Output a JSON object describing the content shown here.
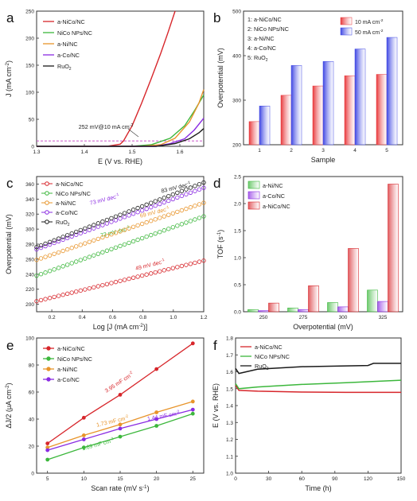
{
  "chart_data": [
    {
      "panel": "a",
      "type": "line",
      "xlabel": "E (V vs. RHE)",
      "ylabel": "J (mA cm-2)",
      "xlim": [
        1.3,
        1.65
      ],
      "ylim": [
        0,
        250
      ],
      "xticks": [
        "1.3",
        "1.4",
        "1.5",
        "1.6"
      ],
      "yticks": [
        "0",
        "50",
        "100",
        "150",
        "200",
        "250"
      ],
      "annotation": "252 mV@10 mA cm-2",
      "reference_line": 10,
      "series": [
        {
          "name": "a-NiCo/NC",
          "color": "#d7262b",
          "points": [
            [
              1.3,
              0
            ],
            [
              1.45,
              0.5
            ],
            [
              1.475,
              4
            ],
            [
              1.482,
              10
            ],
            [
              1.5,
              38
            ],
            [
              1.52,
              80
            ],
            [
              1.54,
              125
            ],
            [
              1.56,
              172
            ],
            [
              1.575,
              210
            ],
            [
              1.59,
              250
            ]
          ]
        },
        {
          "name": "NiCo NPs/NC",
          "color": "#3cb73c",
          "points": [
            [
              1.3,
              0
            ],
            [
              1.5,
              0
            ],
            [
              1.54,
              3
            ],
            [
              1.58,
              15
            ],
            [
              1.61,
              38
            ],
            [
              1.63,
              65
            ],
            [
              1.65,
              95
            ]
          ]
        },
        {
          "name": "a-Ni/NC",
          "color": "#e8942a",
          "points": [
            [
              1.3,
              0
            ],
            [
              1.52,
              0
            ],
            [
              1.56,
              3
            ],
            [
              1.59,
              15
            ],
            [
              1.62,
              45
            ],
            [
              1.64,
              80
            ],
            [
              1.65,
              105
            ]
          ]
        },
        {
          "name": "a-Co/NC",
          "color": "#8a2be2",
          "points": [
            [
              1.3,
              0
            ],
            [
              1.55,
              0
            ],
            [
              1.58,
              5
            ],
            [
              1.61,
              14
            ],
            [
              1.63,
              30
            ],
            [
              1.65,
              52
            ]
          ]
        },
        {
          "name": "RuO2",
          "color": "#1a1a1a",
          "points": [
            [
              1.3,
              0
            ],
            [
              1.55,
              0
            ],
            [
              1.59,
              5
            ],
            [
              1.62,
              14
            ],
            [
              1.64,
              25
            ],
            [
              1.65,
              33
            ]
          ]
        }
      ]
    },
    {
      "panel": "b",
      "type": "bar",
      "xlabel": "Sample",
      "ylabel": "Overpotential (mV)",
      "ylim": [
        200,
        500
      ],
      "yticks": [
        "200",
        "300",
        "400",
        "500"
      ],
      "categories": [
        "1",
        "2",
        "3",
        "4",
        "5"
      ],
      "sample_legend": [
        "1: a-NiCo/NC",
        "2: NiCo NPs/NC",
        "3: a-Ni/NC",
        "4: a-Co/NC",
        "5: RuO2"
      ],
      "series": [
        {
          "name": "10 mA cm-2",
          "color": "#e8393c",
          "values": [
            252,
            311,
            332,
            355,
            358
          ]
        },
        {
          "name": "50 mA cm-2",
          "color": "#3f47e3",
          "values": [
            287,
            378,
            387,
            415,
            441
          ]
        }
      ]
    },
    {
      "panel": "c",
      "type": "scatter",
      "xlabel": "Log [J (mA cm-2)]",
      "ylabel": "Overpotential (mV)",
      "xlim": [
        0.1,
        1.2
      ],
      "ylim": [
        190,
        370
      ],
      "xticks": [
        "0.2",
        "0.4",
        "0.6",
        "0.8",
        "1.0",
        "1.2"
      ],
      "yticks": [
        "200",
        "220",
        "240",
        "260",
        "280",
        "300",
        "320",
        "340",
        "360"
      ],
      "series": [
        {
          "name": "a-NiCo/NC",
          "color": "#d7262b",
          "start": [
            0.1,
            204
          ],
          "end": [
            1.2,
            258
          ],
          "slope_label": "49 mV dec-1"
        },
        {
          "name": "NiCo NPs/NC",
          "color": "#3cb73c",
          "start": [
            0.1,
            238
          ],
          "end": [
            1.2,
            317
          ],
          "slope_label": "72 mV dec-1"
        },
        {
          "name": "a-Ni/NC",
          "color": "#e8942a",
          "start": [
            0.1,
            259
          ],
          "end": [
            1.2,
            335
          ],
          "slope_label": "69 mV dec-1"
        },
        {
          "name": "a-Co/NC",
          "color": "#8a2be2",
          "start": [
            0.1,
            273
          ],
          "end": [
            1.2,
            355
          ],
          "slope_label": "73 mV dec-1"
        },
        {
          "name": "RuO2",
          "color": "#1a1a1a",
          "start": [
            0.1,
            276
          ],
          "end": [
            1.2,
            362
          ],
          "slope_label": "83 mV dec-1"
        }
      ]
    },
    {
      "panel": "d",
      "type": "bar",
      "xlabel": "Overpotential (mV)",
      "ylabel": "TOF (s-1)",
      "ylim": [
        0,
        2.5
      ],
      "yticks": [
        "0.0",
        "0.5",
        "1.0",
        "1.5",
        "2.0",
        "2.5"
      ],
      "categories": [
        "250",
        "275",
        "300",
        "325"
      ],
      "series": [
        {
          "name": "a-Ni/NC",
          "color": "#3cb73c",
          "values": [
            0.04,
            0.07,
            0.17,
            0.4
          ]
        },
        {
          "name": "a-Co/NC",
          "color": "#8a2be2",
          "values": [
            0.02,
            0.04,
            0.09,
            0.19
          ]
        },
        {
          "name": "a-NiCo/NC",
          "color": "#d7262b",
          "values": [
            0.16,
            0.48,
            1.17,
            2.36
          ]
        }
      ]
    },
    {
      "panel": "e",
      "type": "line",
      "xlabel": "Scan rate (mV s-1)",
      "ylabel": "ΔJ/2 (μA cm-2)",
      "xlim": [
        0,
        25
      ],
      "ylim": [
        0,
        100
      ],
      "xticks": [
        "5",
        "10",
        "15",
        "20",
        "25"
      ],
      "yticks": [
        "0",
        "20",
        "40",
        "60",
        "80",
        "100"
      ],
      "series": [
        {
          "name": "a-NiCo/NC",
          "color": "#d7262b",
          "x": [
            5,
            10,
            15,
            20,
            25
          ],
          "values": [
            22,
            41,
            58,
            77,
            96
          ],
          "slope_label": "3.95 mF cm-2"
        },
        {
          "name": "NiCo NPs/NC",
          "color": "#3cb73c",
          "x": [
            5,
            10,
            15,
            20,
            25
          ],
          "values": [
            10,
            19,
            27,
            35,
            44
          ],
          "slope_label": "1.69 mF cm-2"
        },
        {
          "name": "a-Ni/NC",
          "color": "#e8942a",
          "x": [
            5,
            10,
            15,
            20,
            25
          ],
          "values": [
            19,
            28,
            36,
            45,
            53
          ],
          "slope_label": "1.73 mF cm-2"
        },
        {
          "name": "a-Co/NC",
          "color": "#8a2be2",
          "x": [
            5,
            10,
            15,
            20,
            25
          ],
          "values": [
            17,
            25,
            33,
            40,
            47
          ],
          "slope_label": "1.44 mF cm-2"
        }
      ]
    },
    {
      "panel": "f",
      "type": "line",
      "xlabel": "Time (h)",
      "ylabel": "E (V vs. RHE)",
      "xlim": [
        0,
        150
      ],
      "ylim": [
        1.0,
        1.8
      ],
      "xticks": [
        "0",
        "30",
        "60",
        "90",
        "120",
        "150"
      ],
      "yticks": [
        "1.0",
        "1.1",
        "1.2",
        "1.3",
        "1.4",
        "1.5",
        "1.6",
        "1.7",
        "1.8"
      ],
      "series": [
        {
          "name": "a-NiCo/NC",
          "color": "#d7262b",
          "points": [
            [
              0,
              1.52
            ],
            [
              3,
              1.49
            ],
            [
              20,
              1.485
            ],
            [
              60,
              1.48
            ],
            [
              100,
              1.478
            ],
            [
              150,
              1.478
            ]
          ]
        },
        {
          "name": "NiCo NPs/NC",
          "color": "#3cb73c",
          "points": [
            [
              0,
              1.53
            ],
            [
              3,
              1.5
            ],
            [
              20,
              1.51
            ],
            [
              60,
              1.525
            ],
            [
              100,
              1.535
            ],
            [
              150,
              1.55
            ]
          ]
        },
        {
          "name": "RuO2",
          "color": "#1a1a1a",
          "points": [
            [
              0,
              1.62
            ],
            [
              3,
              1.59
            ],
            [
              20,
              1.615
            ],
            [
              60,
              1.63
            ],
            [
              100,
              1.635
            ],
            [
              120,
              1.637
            ],
            [
              125,
              1.65
            ],
            [
              150,
              1.65
            ]
          ]
        }
      ]
    }
  ]
}
